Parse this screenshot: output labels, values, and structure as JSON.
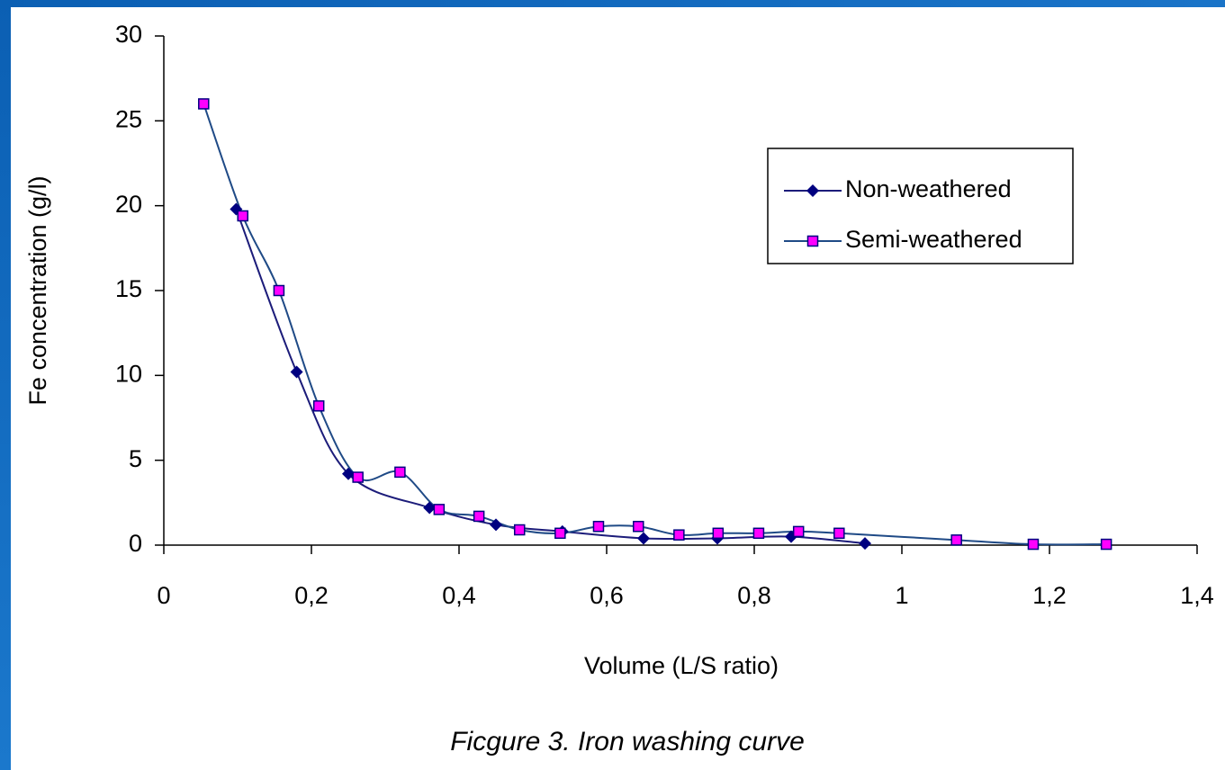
{
  "chart_data": {
    "type": "line",
    "x_label": "Volume (L/S ratio)",
    "y_label": "Fe concentration (g/l)",
    "caption": "Ficgure 3. Iron washing curve",
    "xlim": [
      0,
      1.4
    ],
    "ylim": [
      0,
      30
    ],
    "xticks": [
      0,
      {
        "value": 0.2,
        "label": "0,2"
      },
      {
        "value": 0.4,
        "label": "0,4"
      },
      {
        "value": 0.6,
        "label": "0,6"
      },
      {
        "value": 0.8,
        "label": "0,8"
      },
      1,
      {
        "value": 1.2,
        "label": "1,2"
      },
      {
        "value": 1.4,
        "label": "1,4"
      }
    ],
    "yticks": [
      0,
      5,
      10,
      15,
      20,
      25,
      30
    ],
    "smooth": true,
    "legend": "right",
    "series": [
      {
        "name": "Non-weathered",
        "marker": "diamond",
        "color": "#000080",
        "line_color": "#1c1c7a",
        "x": [
          0.098,
          0.18,
          0.25,
          0.36,
          0.45,
          0.54,
          0.65,
          0.75,
          0.85,
          0.95
        ],
        "values": [
          19.8,
          10.2,
          4.2,
          2.2,
          1.2,
          0.8,
          0.4,
          0.4,
          0.5,
          0.1
        ]
      },
      {
        "name": "Semi-weathered",
        "marker": "square",
        "color": "#ff00ff",
        "line_color": "#1f4a86",
        "x": [
          0.054,
          0.107,
          0.156,
          0.21,
          0.263,
          0.32,
          0.373,
          0.427,
          0.482,
          0.537,
          0.589,
          0.643,
          0.698,
          0.751,
          0.806,
          0.86,
          0.915,
          1.074,
          1.178,
          1.277
        ],
        "values": [
          26,
          19.4,
          15.0,
          8.2,
          4.0,
          4.3,
          2.1,
          1.7,
          0.9,
          0.7,
          1.1,
          1.1,
          0.6,
          0.7,
          0.7,
          0.8,
          0.7,
          0.3,
          0.05,
          0.05
        ]
      }
    ]
  }
}
